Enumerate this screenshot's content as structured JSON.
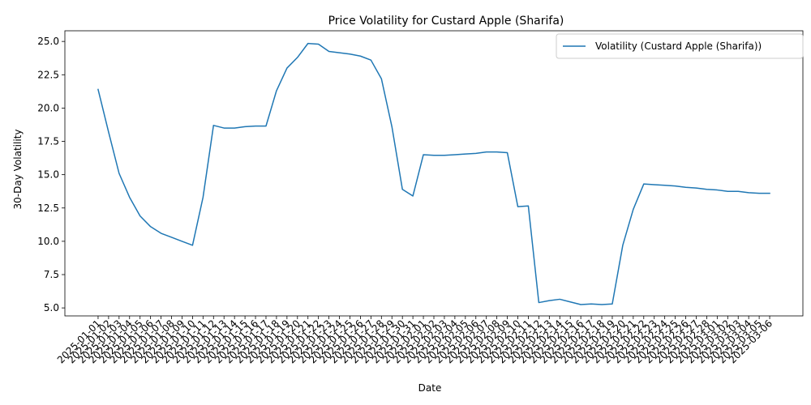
{
  "chart_data": {
    "type": "line",
    "title": "Price Volatility for Custard Apple (Sharifa)",
    "xlabel": "Date",
    "ylabel": "30-Day Volatility",
    "ylim": [
      4.4,
      25.8
    ],
    "yticks": [
      5.0,
      7.5,
      10.0,
      12.5,
      15.0,
      17.5,
      20.0,
      22.5,
      25.0
    ],
    "ytick_labels": [
      "5.0",
      "7.5",
      "10.0",
      "12.5",
      "15.0",
      "17.5",
      "20.0",
      "22.5",
      "25.0"
    ],
    "grid": false,
    "legend_position": "top-right",
    "colors": {
      "line": "#1f77b4"
    },
    "x": [
      "2025-01-01",
      "2025-01-02",
      "2025-01-03",
      "2025-01-04",
      "2025-01-05",
      "2025-01-06",
      "2025-01-07",
      "2025-01-08",
      "2025-01-09",
      "2025-01-10",
      "2025-01-11",
      "2025-01-12",
      "2025-01-13",
      "2025-01-14",
      "2025-01-15",
      "2025-01-16",
      "2025-01-17",
      "2025-01-18",
      "2025-01-19",
      "2025-01-20",
      "2025-01-21",
      "2025-01-22",
      "2025-01-23",
      "2025-01-24",
      "2025-01-25",
      "2025-01-26",
      "2025-01-27",
      "2025-01-28",
      "2025-01-29",
      "2025-01-30",
      "2025-01-31",
      "2025-02-01",
      "2025-02-02",
      "2025-02-03",
      "2025-02-04",
      "2025-02-05",
      "2025-02-06",
      "2025-02-07",
      "2025-02-08",
      "2025-02-09",
      "2025-02-10",
      "2025-02-11",
      "2025-02-12",
      "2025-02-13",
      "2025-02-14",
      "2025-02-15",
      "2025-02-16",
      "2025-02-17",
      "2025-02-18",
      "2025-02-19",
      "2025-02-20",
      "2025-02-21",
      "2025-02-22",
      "2025-02-23",
      "2025-02-24",
      "2025-02-25",
      "2025-02-26",
      "2025-02-27",
      "2025-02-28",
      "2025-03-01",
      "2025-03-02",
      "2025-03-03",
      "2025-03-04",
      "2025-03-05",
      "2025-03-06"
    ],
    "series": [
      {
        "name": "Volatility (Custard Apple (Sharifa))",
        "values": [
          21.4,
          18.2,
          15.1,
          13.3,
          11.9,
          11.1,
          10.6,
          10.3,
          10.0,
          9.7,
          13.3,
          18.7,
          18.5,
          18.5,
          18.6,
          18.65,
          18.65,
          21.3,
          23.0,
          23.8,
          24.85,
          24.8,
          24.25,
          24.15,
          24.05,
          23.9,
          23.6,
          22.2,
          18.6,
          13.9,
          13.4,
          16.5,
          16.45,
          16.45,
          16.5,
          16.55,
          16.6,
          16.7,
          16.7,
          16.65,
          12.6,
          12.65,
          5.4,
          5.55,
          5.65,
          5.45,
          5.25,
          5.3,
          5.25,
          5.3,
          9.7,
          12.4,
          14.3,
          14.25,
          14.2,
          14.15,
          14.05,
          14.0,
          13.9,
          13.85,
          13.75,
          13.75,
          13.65,
          13.6,
          13.6
        ]
      }
    ]
  }
}
